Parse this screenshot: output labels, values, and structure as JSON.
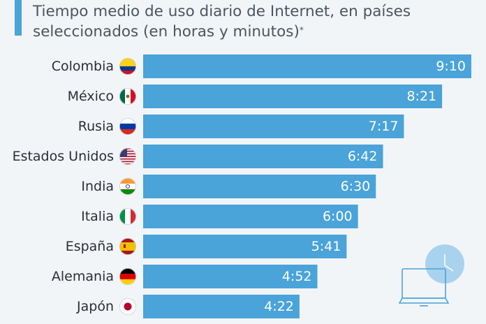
{
  "title": {
    "text": "Tiempo medio de uso diario de Internet, en países seleccionados (en horas y minutos)",
    "footnote_mark": "*"
  },
  "colors": {
    "bar": "#4aa3d9",
    "title_accent": "#4aa3d9",
    "background": "#f2f5f7"
  },
  "chart_data": {
    "type": "bar",
    "orientation": "horizontal",
    "title": "Tiempo medio de uso diario de Internet, en países seleccionados (en horas y minutos)",
    "categories": [
      "Colombia",
      "México",
      "Rusia",
      "Estados Unidos",
      "India",
      "Italia",
      "España",
      "Alemania",
      "Japón"
    ],
    "flag_icons": [
      "colombia-flag-icon",
      "mexico-flag-icon",
      "russia-flag-icon",
      "usa-flag-icon",
      "india-flag-icon",
      "italy-flag-icon",
      "spain-flag-icon",
      "germany-flag-icon",
      "japan-flag-icon"
    ],
    "value_labels": [
      "9:10",
      "8:21",
      "7:17",
      "6:42",
      "6:30",
      "6:00",
      "5:41",
      "4:52",
      "4:22"
    ],
    "values_minutes": [
      550,
      501,
      437,
      402,
      390,
      360,
      341,
      292,
      262
    ],
    "xlim": [
      0,
      550
    ],
    "grid": false,
    "legend": "none"
  }
}
